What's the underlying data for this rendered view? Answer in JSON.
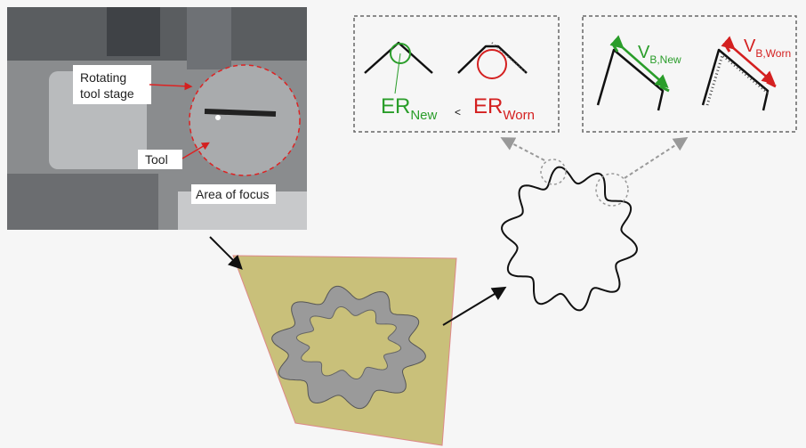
{
  "photo": {
    "stage_label": [
      "Rotating",
      "tool stage"
    ],
    "tool_label": "Tool",
    "focus_label": "Area of focus"
  },
  "edge_radius": {
    "new": {
      "main": "ER",
      "sub": "New"
    },
    "comparator": "<",
    "worn": {
      "main": "ER",
      "sub": "Worn"
    }
  },
  "flank_wear": {
    "new": {
      "main": "V",
      "sub": "B,New"
    },
    "worn": {
      "main": "V",
      "sub": "B,Worn"
    }
  }
}
